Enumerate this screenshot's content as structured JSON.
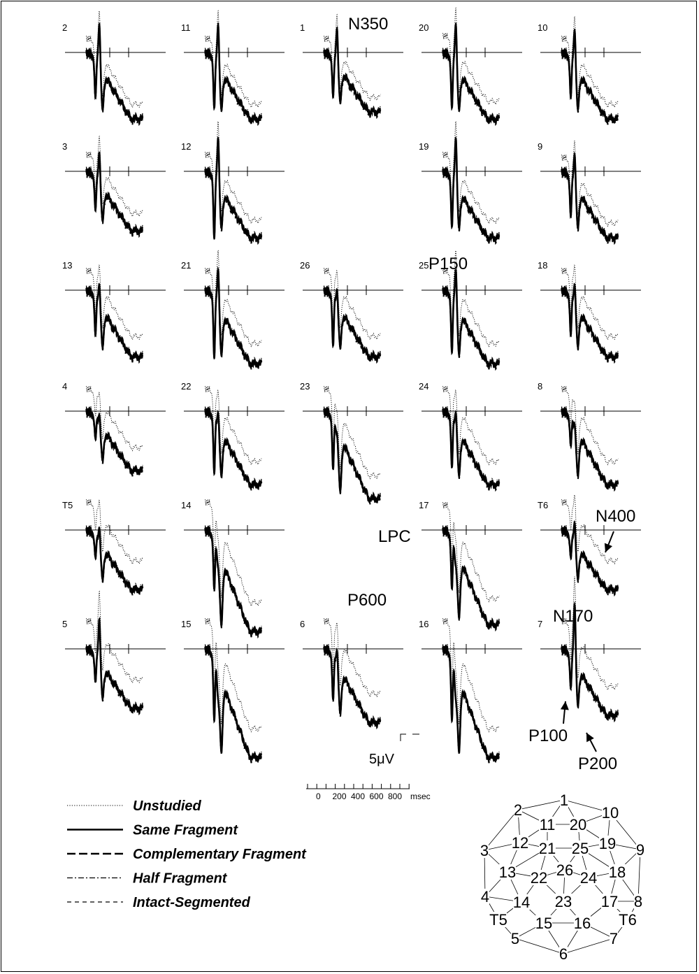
{
  "chart_data": {
    "type": "line",
    "x_unit": "msec",
    "x_ticks": [
      0,
      200,
      400,
      600,
      800
    ],
    "amplitude_scale": "5μV",
    "legend": [
      {
        "name": "Unstudied",
        "style": "dotted"
      },
      {
        "name": "Same Fragment",
        "style": "thick-solid"
      },
      {
        "name": "Complementary Fragment",
        "style": "long-dash"
      },
      {
        "name": "Half Fragment",
        "style": "dash-dot"
      },
      {
        "name": "Intact-Segmented",
        "style": "short-dash"
      }
    ],
    "panels": [
      {
        "id": "2",
        "row": 0,
        "col": 0,
        "p100": 7,
        "n170": -8,
        "p200": 7,
        "unstudied_offset": -2.5
      },
      {
        "id": "11",
        "row": 0,
        "col": 1,
        "p100": 9,
        "n170": -8,
        "p200": 7,
        "unstudied_offset": -2.5
      },
      {
        "id": "1",
        "row": 0,
        "col": 2,
        "p100": 7,
        "n170": -7,
        "p200": 6,
        "unstudied_offset": -2.5
      },
      {
        "id": "20",
        "row": 0,
        "col": 3,
        "p100": 9,
        "n170": -8,
        "p200": 7,
        "unstudied_offset": -3
      },
      {
        "id": "10",
        "row": 0,
        "col": 4,
        "p100": 7,
        "n170": -7,
        "p200": 7,
        "unstudied_offset": -2.5
      },
      {
        "id": "3",
        "row": 1,
        "col": 0,
        "p100": 6,
        "n170": -6,
        "p200": 6,
        "unstudied_offset": -3
      },
      {
        "id": "12",
        "row": 1,
        "col": 1,
        "p100": 11,
        "n170": -9,
        "p200": 7,
        "unstudied_offset": -3
      },
      {
        "id": "19",
        "row": 1,
        "col": 3,
        "p100": 9,
        "n170": -9,
        "p200": 7,
        "unstudied_offset": -3
      },
      {
        "id": "9",
        "row": 1,
        "col": 4,
        "p100": 7,
        "n170": -6,
        "p200": 7,
        "unstudied_offset": -2.5
      },
      {
        "id": "13",
        "row": 2,
        "col": 0,
        "p100": 7,
        "n170": -4,
        "p200": 7,
        "unstudied_offset": -3.5
      },
      {
        "id": "21",
        "row": 2,
        "col": 1,
        "p100": 11,
        "n170": -7,
        "p200": 8,
        "unstudied_offset": -3.5
      },
      {
        "id": "26",
        "row": 2,
        "col": 2,
        "p100": 9,
        "n170": -3,
        "p200": 7,
        "unstudied_offset": -3.5
      },
      {
        "id": "25",
        "row": 2,
        "col": 3,
        "p100": 10,
        "n170": -7,
        "p200": 8,
        "unstudied_offset": -3.5
      },
      {
        "id": "18",
        "row": 2,
        "col": 4,
        "p100": 7,
        "n170": -4,
        "p200": 7,
        "unstudied_offset": -3.5
      },
      {
        "id": "4",
        "row": 3,
        "col": 0,
        "p100": 4,
        "n170": -2,
        "p200": 6,
        "unstudied_offset": -4
      },
      {
        "id": "22",
        "row": 3,
        "col": 1,
        "p100": 10,
        "n170": -3,
        "p200": 8,
        "unstudied_offset": -4
      },
      {
        "id": "23",
        "row": 3,
        "col": 2,
        "p100": 9,
        "n170": 0,
        "p200": 10,
        "unstudied_offset": -4
      },
      {
        "id": "24",
        "row": 3,
        "col": 3,
        "p100": 9,
        "n170": -3,
        "p200": 8,
        "unstudied_offset": -4
      },
      {
        "id": "8",
        "row": 3,
        "col": 4,
        "p100": 5,
        "n170": -1,
        "p200": 8,
        "unstudied_offset": -4
      },
      {
        "id": "T5",
        "row": 4,
        "col": 0,
        "p100": 4,
        "n170": -3,
        "p200": 6,
        "unstudied_offset": -5
      },
      {
        "id": "14",
        "row": 4,
        "col": 1,
        "p100": 9,
        "n170": 2,
        "p200": 12,
        "unstudied_offset": -5
      },
      {
        "id": "17",
        "row": 4,
        "col": 3,
        "p100": 9,
        "n170": 2,
        "p200": 11,
        "unstudied_offset": -4.5
      },
      {
        "id": "T6",
        "row": 4,
        "col": 4,
        "p100": 4,
        "n170": -4,
        "p200": 6,
        "unstudied_offset": -5
      },
      {
        "id": "5",
        "row": 5,
        "col": 0,
        "p100": 5,
        "n170": -8,
        "p200": 6,
        "unstudied_offset": -5
      },
      {
        "id": "15",
        "row": 5,
        "col": 1,
        "p100": 11,
        "n170": 4,
        "p200": 13,
        "unstudied_offset": -5
      },
      {
        "id": "6",
        "row": 5,
        "col": 2,
        "p100": 8,
        "n170": -3,
        "p200": 8,
        "unstudied_offset": -5
      },
      {
        "id": "16",
        "row": 5,
        "col": 3,
        "p100": 11,
        "n170": 4,
        "p200": 13,
        "unstudied_offset": -5
      },
      {
        "id": "7",
        "row": 5,
        "col": 4,
        "p100": 6,
        "n170": -11,
        "p200": 7,
        "unstudied_offset": -5
      }
    ],
    "component_labels": [
      {
        "text": "N350",
        "panel": "1"
      },
      {
        "text": "P150",
        "panel": "25"
      },
      {
        "text": "LPC",
        "panel": "23"
      },
      {
        "text": "P600",
        "panel": "23"
      },
      {
        "text": "N400",
        "panel": "T6"
      },
      {
        "text": "N170",
        "panel": "7"
      },
      {
        "text": "P100",
        "panel": "7"
      },
      {
        "text": "P200",
        "panel": "7"
      }
    ],
    "montage": {
      "electrodes": [
        "1",
        "2",
        "10",
        "11",
        "20",
        "12",
        "21",
        "25",
        "19",
        "3",
        "9",
        "26",
        "13",
        "22",
        "24",
        "18",
        "4",
        "23",
        "17",
        "8",
        "14",
        "T5",
        "15",
        "16",
        "T6",
        "5",
        "7",
        "6"
      ]
    }
  }
}
